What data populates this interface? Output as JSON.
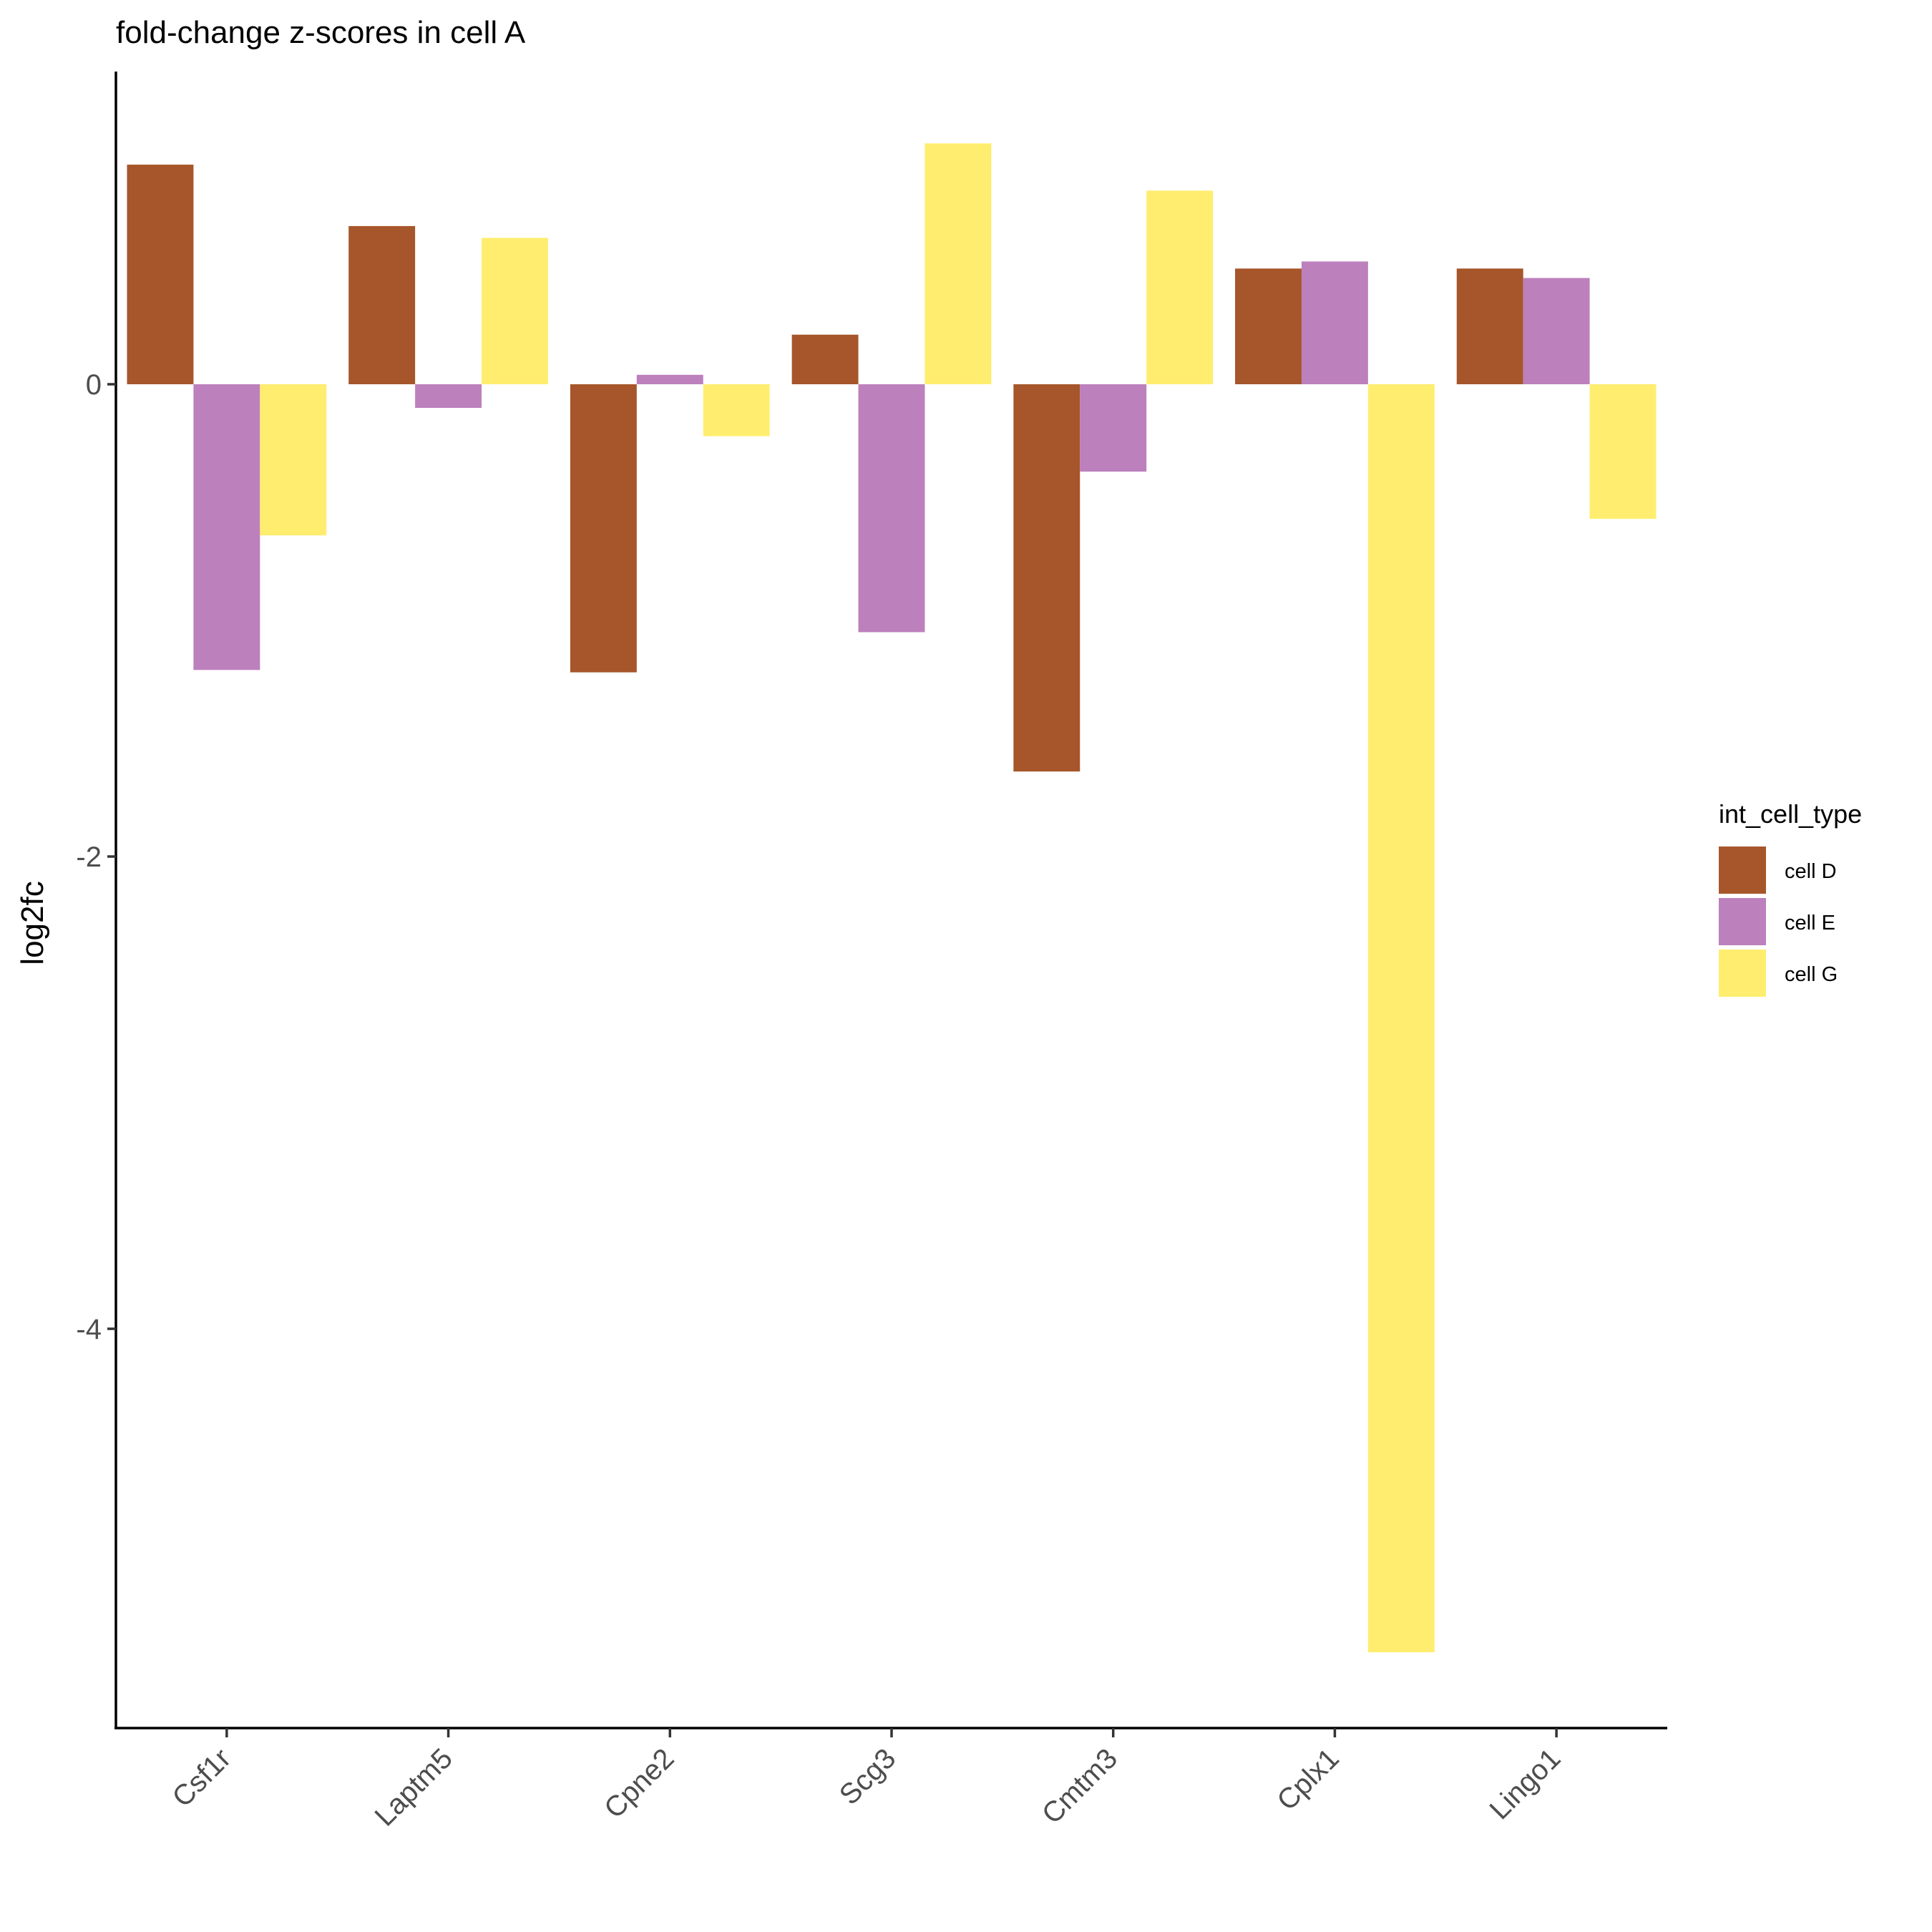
{
  "chart_data": {
    "type": "bar",
    "title": "fold-change z-scores in cell A",
    "xlabel": "",
    "ylabel": "log2fc",
    "categories": [
      "Csf1r",
      "Laptm5",
      "Cpne2",
      "Scg3",
      "Cmtm3",
      "Cplx1",
      "Lingo1"
    ],
    "series": [
      {
        "name": "cell D",
        "color": "#A6562A",
        "values": [
          0.93,
          0.67,
          -1.22,
          0.21,
          -1.64,
          0.49,
          0.49
        ]
      },
      {
        "name": "cell E",
        "color": "#BC80BD",
        "values": [
          -1.21,
          -0.1,
          0.04,
          -1.05,
          -0.37,
          0.52,
          0.45
        ]
      },
      {
        "name": "cell G",
        "color": "#FFED6F",
        "values": [
          -0.64,
          0.62,
          -0.22,
          1.02,
          0.82,
          -5.37,
          -0.57
        ]
      }
    ],
    "yticks": [
      0,
      -2,
      -4
    ],
    "ylim": [
      -5.64,
      1.33
    ],
    "grid": false,
    "legend": {
      "title": "int_cell_type",
      "position": "right"
    }
  }
}
